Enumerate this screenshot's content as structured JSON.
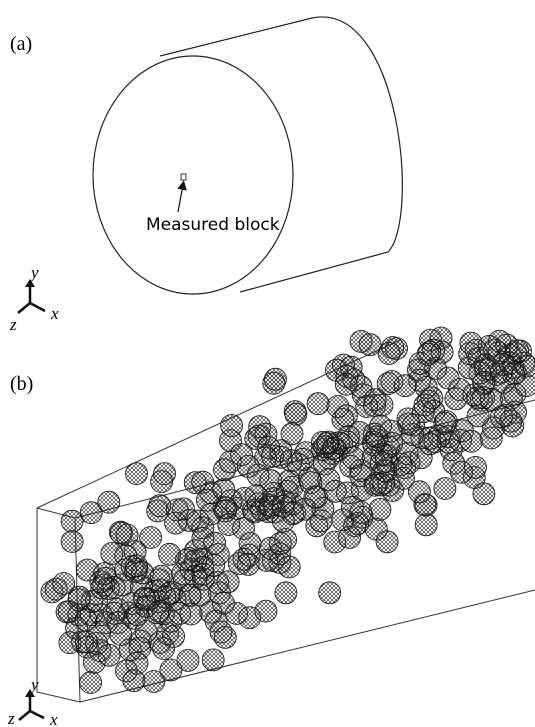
{
  "panels": [
    {
      "label": "(a)",
      "annotation": "Measured block",
      "axes": {
        "y": "y",
        "z": "z",
        "x": "x"
      }
    },
    {
      "label": "(b)",
      "axes": {
        "y": "y",
        "z": "z",
        "x": "x"
      }
    }
  ]
}
